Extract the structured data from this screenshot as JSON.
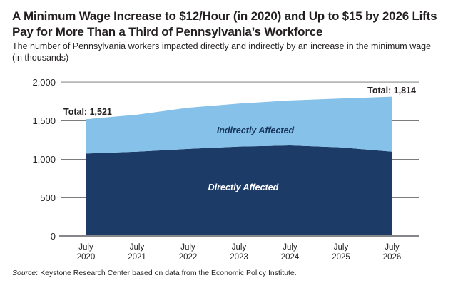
{
  "header": {
    "title_lines": [
      "A Minimum Wage Increase to $12/Hour (in 2020) and Up to $15 by 2026 Lifts",
      "Pay for More Than a Third of Pennsylvania’s Workforce"
    ],
    "subtitle_lines": [
      "The number of Pennsylvania workers impacted directly and indirectly by an increase in the minimum wage",
      "(in thousands)"
    ]
  },
  "chart_data": {
    "type": "area",
    "stacked": true,
    "title": "A Minimum Wage Increase to $12/Hour (in 2020) and Up to $15 by 2026 Lifts Pay for More Than a Third of Pennsylvania’s Workforce",
    "subtitle": "The number of Pennsylvania workers impacted directly and indirectly by an increase in the minimum wage (in thousands)",
    "categories": [
      "July 2020",
      "July 2021",
      "July 2022",
      "July 2023",
      "July 2024",
      "July 2025",
      "July 2026"
    ],
    "series": [
      {
        "name": "Directly Affected",
        "color": "#1c3b67",
        "values": [
          1075,
          1100,
          1135,
          1165,
          1180,
          1155,
          1100
        ]
      },
      {
        "name": "Indirectly Affected",
        "color": "#85c1e8",
        "values": [
          446,
          480,
          535,
          560,
          585,
          635,
          714
        ]
      }
    ],
    "totals": [
      1521,
      1580,
      1670,
      1725,
      1765,
      1790,
      1814
    ],
    "annotations": {
      "total_start": "Total: 1,521",
      "total_end": "Total: 1,814"
    },
    "xlabel": "",
    "ylabel": "(in thousands)",
    "ylim": [
      0,
      2000
    ],
    "y_ticks": [
      2000,
      1500,
      1000,
      500,
      0
    ],
    "y_tick_labels": [
      "2,000",
      "1,500",
      "1,000",
      "500",
      "0"
    ],
    "grid": true,
    "legend_position": "in-chart labels",
    "colors": {
      "grid_top": "#b4b6b8",
      "grid": "#7a7c7f",
      "axis": "#85878a",
      "text": "#231f20",
      "label_on_light": "#17365d",
      "label_on_dark": "#ffffff"
    }
  },
  "footer": {
    "source_label": "Source",
    "source_rest": ": Keystone Research Center based on data from the Economic Policy Institute."
  }
}
